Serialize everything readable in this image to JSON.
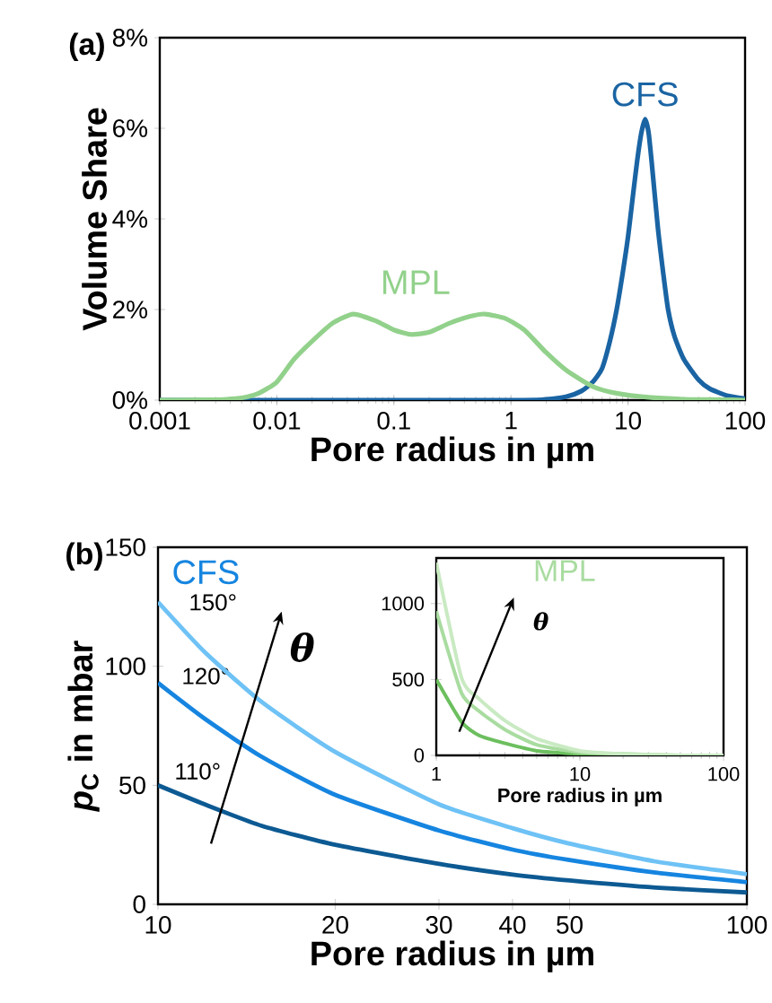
{
  "chart_data": [
    {
      "type": "line",
      "title": "(a)",
      "xlabel": "Pore radius in µm",
      "ylabel": "Volume Share",
      "log": "x",
      "xlim": [
        0.001,
        100
      ],
      "xticks": [
        0.001,
        0.01,
        0.1,
        1,
        10,
        100
      ],
      "ylim": [
        0,
        8
      ],
      "yticks": [
        {
          "value": 0,
          "label": "0%"
        },
        {
          "value": 2,
          "label": "2%"
        },
        {
          "value": 4,
          "label": "4%"
        },
        {
          "value": 6,
          "label": "6%"
        },
        {
          "value": 8,
          "label": "8%"
        }
      ],
      "series": [
        {
          "name": "CFS",
          "color": "#1a64a3",
          "x": [
            0.001,
            1,
            2,
            3,
            4,
            5,
            6,
            7,
            8,
            9,
            10,
            11,
            12,
            13,
            14,
            15,
            16,
            18,
            20,
            22,
            25,
            30,
            40,
            50,
            70,
            100
          ],
          "values": [
            0,
            0,
            0.02,
            0.08,
            0.2,
            0.4,
            0.7,
            1.3,
            2.0,
            2.8,
            3.6,
            4.5,
            5.3,
            5.9,
            6.2,
            5.9,
            5.2,
            3.8,
            2.8,
            2.0,
            1.4,
            0.9,
            0.45,
            0.25,
            0.1,
            0.03
          ]
        },
        {
          "name": "MPL",
          "color": "#92d18b",
          "x": [
            0.001,
            0.003,
            0.005,
            0.007,
            0.01,
            0.014,
            0.02,
            0.03,
            0.045,
            0.07,
            0.1,
            0.14,
            0.2,
            0.3,
            0.45,
            0.6,
            0.9,
            1.3,
            2,
            3,
            5,
            8,
            15,
            30,
            60,
            100
          ],
          "values": [
            0,
            0.01,
            0.05,
            0.15,
            0.4,
            0.9,
            1.3,
            1.7,
            1.9,
            1.75,
            1.55,
            1.45,
            1.5,
            1.7,
            1.85,
            1.9,
            1.8,
            1.55,
            1.05,
            0.65,
            0.3,
            0.15,
            0.06,
            0.02,
            0.01,
            0
          ]
        }
      ]
    },
    {
      "type": "line",
      "title": "(b)",
      "xlabel": "Pore radius in µm",
      "ylabel": "*p*$_{C}$ in mbar",
      "log": "x",
      "xlim": [
        10,
        100
      ],
      "xticks": [
        10,
        20,
        30,
        40,
        50,
        100
      ],
      "ylim": [
        0,
        150
      ],
      "yticks": [
        0,
        50,
        100,
        150
      ],
      "annotations": [
        "CFS",
        "θ"
      ],
      "series": [
        {
          "name": "110°",
          "color": "#0d5a93",
          "x": [
            10,
            12,
            15,
            20,
            30,
            40,
            50,
            70,
            100
          ],
          "values": [
            50,
            42,
            33,
            25,
            17,
            12.5,
            10,
            7,
            5
          ]
        },
        {
          "name": "120°",
          "color": "#1685e0",
          "x": [
            10,
            12,
            15,
            20,
            30,
            40,
            50,
            70,
            100
          ],
          "values": [
            93,
            78,
            62,
            46,
            31,
            23,
            18.6,
            13.3,
            9.3
          ]
        },
        {
          "name": "150°",
          "color": "#6ec2f5",
          "x": [
            10,
            12,
            15,
            20,
            30,
            40,
            50,
            70,
            100
          ],
          "values": [
            127,
            106,
            85,
            64,
            42,
            32,
            25.5,
            18,
            12.7
          ]
        }
      ]
    },
    {
      "type": "line",
      "xlabel": "Pore radius in µm",
      "log": "x",
      "xlim": [
        1,
        100
      ],
      "xticks": [
        1,
        10,
        100
      ],
      "ylim": [
        0,
        1300
      ],
      "yticks": [
        0,
        500,
        1000
      ],
      "annotations": [
        "MPL",
        "θ"
      ],
      "series": [
        {
          "color": "#6cbf5e",
          "x": [
            1,
            1.5,
            2,
            3,
            5,
            10,
            20,
            50,
            100
          ],
          "values": [
            500,
            220,
            130,
            80,
            30,
            10,
            0,
            0,
            0
          ]
        },
        {
          "color": "#a9dca0",
          "x": [
            1,
            1.5,
            2,
            3,
            5,
            10,
            20,
            50,
            100
          ],
          "values": [
            950,
            410,
            290,
            170,
            70,
            20,
            10,
            0,
            0
          ]
        },
        {
          "color": "#c9eac2",
          "x": [
            1,
            1.5,
            2,
            3,
            5,
            10,
            20,
            50,
            100
          ],
          "values": [
            1270,
            510,
            370,
            230,
            110,
            30,
            10,
            0,
            0
          ]
        }
      ]
    }
  ]
}
